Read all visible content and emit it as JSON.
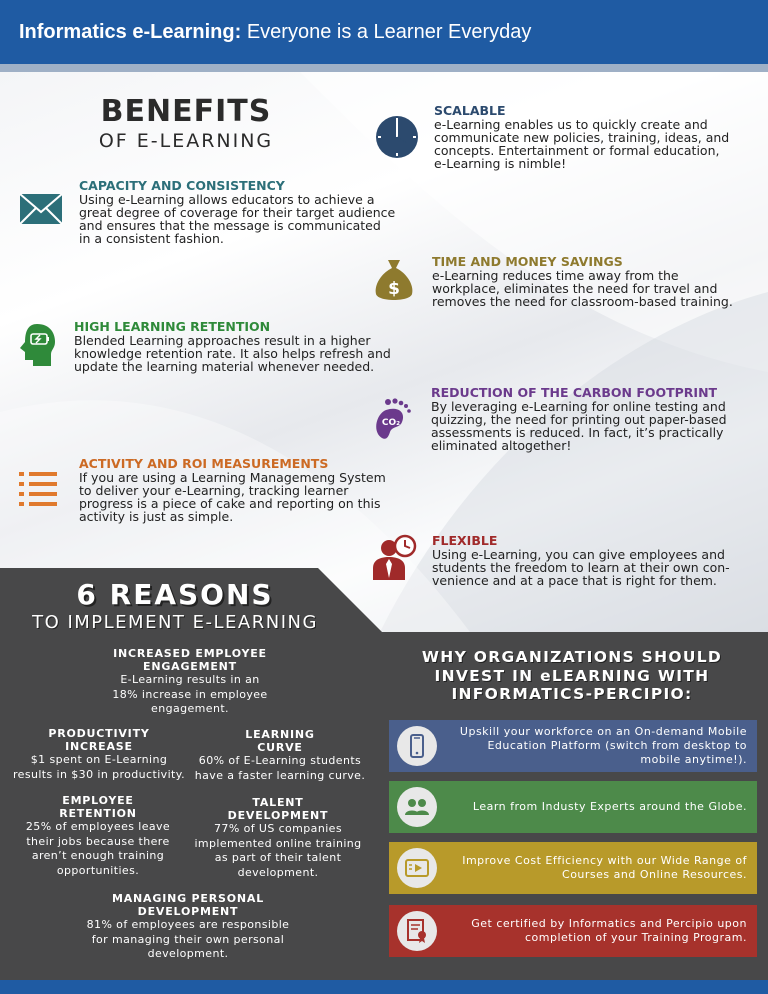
{
  "header": {
    "brand": "Informatics e-Learning:",
    "tagline": "Everyone is a Learner Everyday"
  },
  "benefits": {
    "title_big": "BENEFITS",
    "title_small": "OF E-LEARNING"
  },
  "features": [
    {
      "title": "SCALABLE",
      "text": [
        "e-Learning enables us to quickly create and",
        "communicate new policies, training, ideas, and",
        "concepts. Entertainment or formal education,",
        "e-Learning is nimble!"
      ],
      "color": "#2c4a6e",
      "icon": "clock-icon"
    },
    {
      "title": "CAPACITY AND CONSISTENCY",
      "text": [
        "Using e-Learning allows educators to achieve a",
        "great degree of coverage for their target audience",
        "and ensures that the message is communicated",
        "in a consistent fashion."
      ],
      "color": "#2c6f79",
      "icon": "envelope-icon"
    },
    {
      "title": "TIME AND MONEY SAVINGS",
      "text": [
        "e-Learning reduces time away from the",
        "workplace, eliminates the need for travel and",
        "removes the need for classroom-based training."
      ],
      "color": "#8e7a2e",
      "icon": "money-bag-icon"
    },
    {
      "title": "HIGH LEARNING RETENTION",
      "text": [
        "Blended Learning approaches result in a higher",
        "knowledge retention rate. It also helps refresh and",
        "update the learning material whenever needed."
      ],
      "color": "#2f8a3a",
      "icon": "head-battery-icon"
    },
    {
      "title": "REDUCTION OF THE CARBON FOOTPRINT",
      "text": [
        "By leveraging e-Learning for online testing and",
        "quizzing, the need for printing out paper-based",
        "assessments is reduced. In fact, it’s practically",
        "eliminated altogether!"
      ],
      "color": "#6b3a8c",
      "icon": "footprint-co2-icon"
    },
    {
      "title": "ACTIVITY AND ROI MEASUREMENTS",
      "text": [
        "If you are using a Learning Managemeng System",
        "to deliver your e-Learning, tracking learner",
        "progress is a piece of cake and reporting on this",
        "activity is just as simple."
      ],
      "color": "#cc6a24",
      "icon": "list-icon"
    },
    {
      "title": "FLEXIBLE",
      "text": [
        "Using e-Learning, you can give employees and",
        "students the freedom to learn at their own con-",
        "venience and at a pace that is right for them."
      ],
      "color": "#a02a2a",
      "icon": "person-clock-icon"
    }
  ],
  "reasons": {
    "title_big": "6 REASONS",
    "title_small": "TO IMPLEMENT E-LEARNING",
    "items": [
      {
        "title": [
          "INCREASED EMPLOYEE",
          "ENGAGEMENT"
        ],
        "text": [
          "E-Learning results in an",
          "18% increase in employee",
          "engagement."
        ]
      },
      {
        "title": [
          "PRODUCTIVITY",
          "INCREASE"
        ],
        "text": [
          "$1 spent on E-Learning",
          "results in $30 in productivity."
        ]
      },
      {
        "title": [
          "LEARNING",
          "CURVE"
        ],
        "text": [
          "60% of E-Learning students",
          "have a faster learning curve."
        ]
      },
      {
        "title": [
          "EMPLOYEE",
          "RETENTION"
        ],
        "text": [
          "25% of employees leave",
          "their jobs because there",
          "aren’t enough training",
          "opportunities."
        ]
      },
      {
        "title": [
          "TALENT",
          "DEVELOPMENT"
        ],
        "text": [
          "77% of US companies",
          "implemented online training",
          "as part of their talent",
          "development."
        ]
      },
      {
        "title": [
          "MANAGING PERSONAL",
          "DEVELOPMENT"
        ],
        "text": [
          "81% of employees are responsible",
          "for managing their own personal",
          "development."
        ]
      }
    ]
  },
  "why": {
    "title": [
      "WHY ORGANIZATIONS SHOULD",
      "INVEST IN eLEARNING WITH",
      "INFORMATICS-PERCIPIO:"
    ],
    "boxes": [
      {
        "text": [
          "Upskill your workforce on an On-demand Mobile",
          "Education Platform (switch from desktop to",
          "mobile anytime!)."
        ],
        "color": "#4a5f8c",
        "icon": "mobile-phone-icon"
      },
      {
        "text": [
          "Learn from Industy Experts around the Globe."
        ],
        "color": "#4d8a4a",
        "icon": "people-icon"
      },
      {
        "text": [
          "Improve Cost Efficiency with our Wide Range of",
          "Courses and Online Resources."
        ],
        "color": "#b89a2a",
        "icon": "video-course-icon"
      },
      {
        "text": [
          "Get certified by Informatics and Percipio upon",
          "completion of your Training Program."
        ],
        "color": "#a7322c",
        "icon": "certificate-icon"
      }
    ]
  }
}
